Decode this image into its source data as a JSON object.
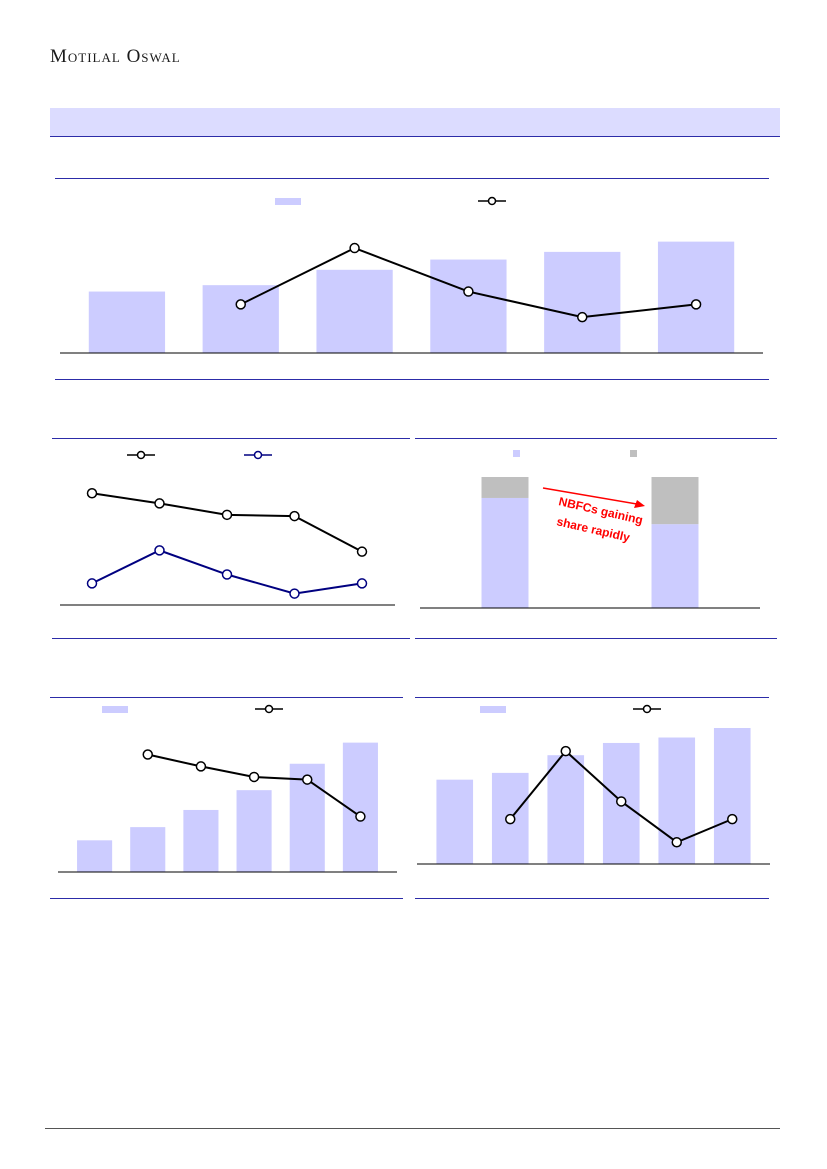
{
  "brand": {
    "name": "Motilal Oswal"
  },
  "colors": {
    "bar": "#ccccff",
    "bar_other": "#bfbfbf",
    "line_dark": "#000000",
    "line_blue": "#000080",
    "annotation": "#ff0000",
    "rule": "#2c2ca8"
  },
  "annotation_text": [
    "NBFCs gaining",
    "share rapidly"
  ],
  "chart_data": [
    {
      "id": "chart1",
      "type": "bar",
      "bar_series": {
        "values": [
          48,
          53,
          65,
          73,
          79,
          87
        ]
      },
      "line_series": {
        "values": [
          null,
          38,
          82,
          48,
          28,
          38
        ]
      },
      "ylim_bar": [
        0,
        100
      ],
      "ylim_line": [
        0,
        100
      ],
      "legend": "top-center",
      "grid": false
    },
    {
      "id": "chart2",
      "type": "line",
      "series": [
        {
          "color": "#000000",
          "values": [
            88,
            80,
            71,
            70,
            42
          ]
        },
        {
          "color": "#000080",
          "values": [
            17,
            43,
            24,
            9,
            17
          ]
        }
      ],
      "ylim": [
        0,
        100
      ],
      "legend": "top-left",
      "grid": false
    },
    {
      "id": "chart3",
      "type": "bar",
      "stacked": true,
      "series": [
        {
          "color": "#ccccff",
          "values": [
            84,
            64
          ]
        },
        {
          "color": "#bfbfbf",
          "values": [
            16,
            36
          ]
        }
      ],
      "ylim": [
        0,
        100
      ],
      "legend": "top-center",
      "grid": false
    },
    {
      "id": "chart4",
      "type": "bar",
      "bar_series": {
        "values": [
          24,
          34,
          47,
          62,
          82,
          98
        ]
      },
      "line_series": {
        "values": [
          null,
          89,
          80,
          72,
          70,
          42
        ]
      },
      "ylim_bar": [
        0,
        100
      ],
      "ylim_line": [
        0,
        100
      ],
      "legend": "top-left",
      "grid": false
    },
    {
      "id": "chart5",
      "type": "bar",
      "bar_series": {
        "values": [
          62,
          67,
          80,
          89,
          93,
          100
        ]
      },
      "line_series": {
        "values": [
          null,
          33,
          83,
          46,
          16,
          33
        ]
      },
      "ylim_bar": [
        0,
        100
      ],
      "ylim_line": [
        0,
        100
      ],
      "legend": "top-left",
      "grid": false
    }
  ]
}
